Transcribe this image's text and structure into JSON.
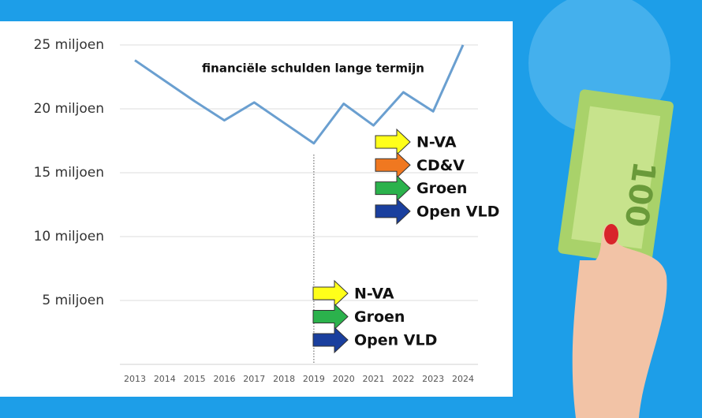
{
  "chart_data": {
    "type": "line",
    "title": "financiële schulden lange termijn",
    "categories": [
      "2013",
      "2014",
      "2015",
      "2016",
      "2017",
      "2018",
      "2019",
      "2020",
      "2021",
      "2022",
      "2023",
      "2024"
    ],
    "series": [
      {
        "color": "#6a9fd0",
        "values": [
          23800000,
          22200000,
          20600000,
          19100000,
          20500000,
          18900000,
          17300000,
          20400000,
          18700000,
          21300000,
          19800000,
          25000000
        ]
      }
    ],
    "ylim": [
      0,
      25000000
    ],
    "yticks": [
      {
        "value": 5000000,
        "label": "5 miljoen"
      },
      {
        "value": 10000000,
        "label": "10 miljoen"
      },
      {
        "value": 15000000,
        "label": "15 miljoen"
      },
      {
        "value": 20000000,
        "label": "20 miljoen"
      },
      {
        "value": 25000000,
        "label": "25 miljoen"
      }
    ],
    "grid": true,
    "vline_at": "2019",
    "arrow_groups": [
      {
        "items": [
          {
            "label": "N-VA",
            "color": "#ffff1a"
          },
          {
            "label": "CD&V",
            "color": "#f07820"
          },
          {
            "label": "Groen",
            "color": "#2bb24c"
          },
          {
            "label": "Open VLD",
            "color": "#1a3f9e"
          }
        ]
      },
      {
        "items": [
          {
            "label": "N-VA",
            "color": "#ffff1a"
          },
          {
            "label": "Groen",
            "color": "#2bb24c"
          },
          {
            "label": "Open VLD",
            "color": "#1a3f9e"
          }
        ]
      }
    ]
  }
}
